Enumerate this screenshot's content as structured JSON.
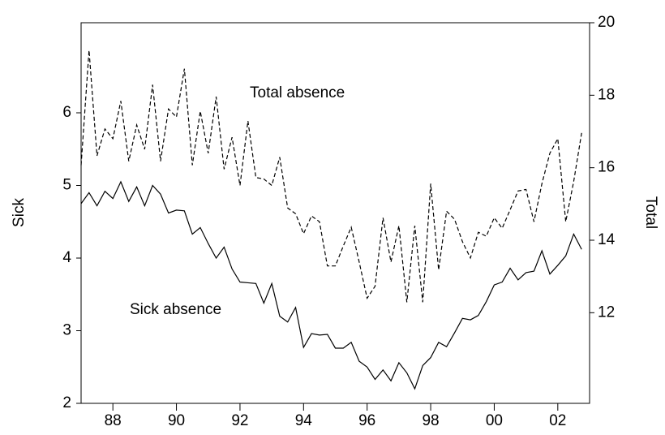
{
  "chart_data": {
    "type": "line",
    "y_label": "Sick",
    "y2_label": "Total",
    "annotations": [
      "Total absence",
      "Sick absence"
    ],
    "x": [
      1987,
      1987.25,
      1987.5,
      1987.75,
      1988,
      1988.25,
      1988.5,
      1988.75,
      1989,
      1989.25,
      1989.5,
      1989.75,
      1990,
      1990.25,
      1990.5,
      1990.75,
      1991,
      1991.25,
      1991.5,
      1991.75,
      1992,
      1992.25,
      1992.5,
      1992.75,
      1993,
      1993.25,
      1993.5,
      1993.75,
      1994,
      1994.25,
      1994.5,
      1994.75,
      1995,
      1995.25,
      1995.5,
      1995.75,
      1996,
      1996.25,
      1996.5,
      1996.75,
      1997,
      1997.25,
      1997.5,
      1997.75,
      1998,
      1998.25,
      1998.5,
      1998.75,
      1999,
      1999.25,
      1999.5,
      1999.75,
      2000,
      2000.25,
      2000.5,
      2000.75,
      2001,
      2001.25,
      2001.5,
      2001.75,
      2002,
      2002.25,
      2002.5,
      2002.75
    ],
    "series": [
      {
        "name": "Sick",
        "color": "#000000",
        "dash": "none",
        "axis": "y",
        "values": [
          4.75,
          4.9,
          4.72,
          4.92,
          4.82,
          5.05,
          4.78,
          4.98,
          4.72,
          5.0,
          4.88,
          4.62,
          4.66,
          4.65,
          4.33,
          4.42,
          4.2,
          4.0,
          4.15,
          3.85,
          3.67,
          3.66,
          3.65,
          3.38,
          3.65,
          3.2,
          3.12,
          3.32,
          2.77,
          2.96,
          2.94,
          2.95,
          2.76,
          2.76,
          2.84,
          2.58,
          2.5,
          2.33,
          2.46,
          2.31,
          2.56,
          2.42,
          2.2,
          2.52,
          2.63,
          2.84,
          2.78,
          2.97,
          3.17,
          3.15,
          3.21,
          3.4,
          3.63,
          3.67,
          3.86,
          3.7,
          3.8,
          3.82,
          4.1,
          3.78,
          3.9,
          4.03,
          4.33,
          4.12
        ]
      },
      {
        "name": "Total",
        "color": "#000000",
        "dash": "5,3",
        "axis": "y2",
        "values": [
          16.07,
          19.24,
          16.33,
          17.07,
          16.8,
          17.84,
          16.18,
          17.18,
          16.51,
          18.29,
          16.18,
          17.62,
          17.4,
          18.73,
          16.07,
          17.56,
          16.4,
          17.96,
          15.96,
          16.84,
          15.51,
          17.29,
          15.73,
          15.69,
          15.51,
          16.29,
          14.89,
          14.73,
          14.18,
          14.67,
          14.51,
          13.29,
          13.29,
          13.84,
          14.36,
          13.4,
          12.4,
          12.73,
          14.62,
          13.4,
          14.4,
          12.29,
          14.4,
          12.29,
          15.56,
          13.18,
          14.8,
          14.58,
          13.96,
          13.51,
          14.22,
          14.11,
          14.62,
          14.33,
          14.84,
          15.36,
          15.4,
          14.51,
          15.56,
          16.4,
          16.8,
          14.51,
          15.62,
          16.96
        ]
      }
    ],
    "xlim": [
      1987,
      2003
    ],
    "xticks": [
      {
        "value": 1988,
        "label": "88"
      },
      {
        "value": 1990,
        "label": "90"
      },
      {
        "value": 1992,
        "label": "92"
      },
      {
        "value": 1994,
        "label": "94"
      },
      {
        "value": 1996,
        "label": "96"
      },
      {
        "value": 1998,
        "label": "98"
      },
      {
        "value": 2000,
        "label": "00"
      },
      {
        "value": 2002,
        "label": "02"
      }
    ],
    "ylim": [
      2,
      7.24
    ],
    "yticks": [
      2,
      3,
      4,
      5,
      6
    ],
    "y2lim": [
      9.5,
      20
    ],
    "y2ticks": [
      12,
      14,
      16,
      18,
      20
    ],
    "grid": false
  }
}
